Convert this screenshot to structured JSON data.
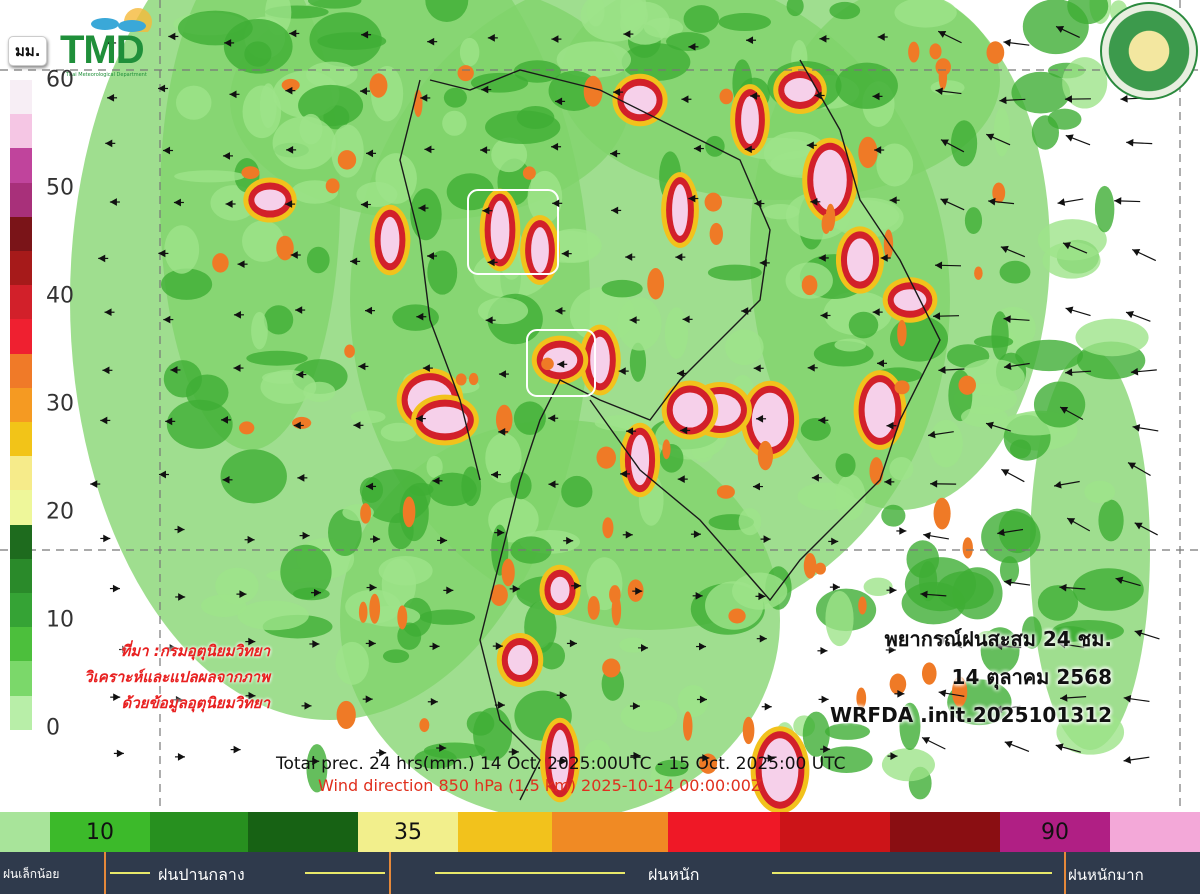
{
  "header": {
    "unit_label": "มม.",
    "logo_text": "TMD",
    "logo_subtitle": "Thai Meteorological Department"
  },
  "left_scale": {
    "ticks": [
      "0",
      "10",
      "20",
      "30",
      "40",
      "50",
      "60"
    ],
    "colors": [
      "#f7eef5",
      "#f5c6e4",
      "#c0449c",
      "#a8307a",
      "#7a1418",
      "#a61a1a",
      "#d2202a",
      "#ef2030",
      "#f07a28",
      "#f59a22",
      "#f2c418",
      "#f6eb8a",
      "#eef79a",
      "#1e6b1e",
      "#2a8a2a",
      "#35a335",
      "#4cbf3c",
      "#7bd86a",
      "#b8eea8"
    ]
  },
  "source_note": [
    "ที่มา :กรมอุตุนิยมวิทยา",
    "วิเคราะห์และแปลผลจากภาพ",
    "ด้วยข้อมูลอุตุนิยมวิทยา"
  ],
  "forecast": {
    "title": "พยากรณ์ฝนสะสม 24 ชม.",
    "date": "14 ตุลาคม 2568",
    "model": "WRFDA .init.2025101312"
  },
  "caption": {
    "line1": "Total prec. 24 hrs(mm.) 14 Oct. 2025:00UTC - 15 Oct.  2025:00  UTC",
    "line2": "Wind direction 850 hPa (1.5 km)  2025-10-14 00:00:00Z"
  },
  "colorbar": {
    "segments": [
      {
        "color": "#a8e49a",
        "label": ""
      },
      {
        "color": "#3cba2a",
        "label": "10"
      },
      {
        "color": "#27901f",
        "label": ""
      },
      {
        "color": "#176214",
        "label": ""
      },
      {
        "color": "#f2ef8c",
        "label": "35"
      },
      {
        "color": "#f2c21c",
        "label": ""
      },
      {
        "color": "#f08a24",
        "label": ""
      },
      {
        "color": "#ef1826",
        "label": ""
      },
      {
        "color": "#cc1418",
        "label": ""
      },
      {
        "color": "#8a0e12",
        "label": ""
      },
      {
        "color": "#b01f84",
        "label": "90"
      },
      {
        "color": "#f3a8d8",
        "label": ""
      }
    ],
    "categories": [
      "ฝนเล็กน้อย",
      "ฝนปานกลาง",
      "ฝนหนัก",
      "ฝนหนักมาก"
    ]
  }
}
